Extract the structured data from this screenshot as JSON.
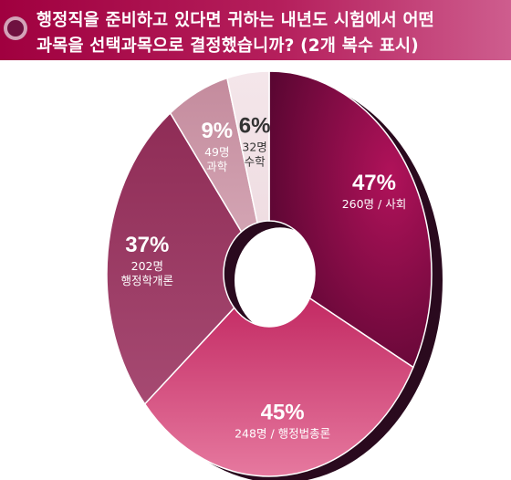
{
  "header": {
    "title_line1": "행정직을 준비하고 있다면 귀하는 내년도 시험에서 어떤",
    "title_line2": "과목을 선택과목으로 결정했습니까? (2개 복수 표시)"
  },
  "colors": {
    "header_start": "#a0003f",
    "header_end": "#ce5d8e",
    "shadow": "#2a0a1e"
  },
  "chart_data": {
    "type": "pie",
    "style": "donut",
    "categories": [
      "사회",
      "행정법총론",
      "행정학개론",
      "과학",
      "수학"
    ],
    "values": [
      47,
      45,
      37,
      9,
      6
    ],
    "counts": [
      260,
      248,
      202,
      49,
      32
    ],
    "percent_labels": [
      "47%",
      "45%",
      "37%",
      "9%",
      "6%"
    ],
    "detail_labels": [
      [
        "260명 / 사회"
      ],
      [
        "248명 / 행정법총론"
      ],
      [
        "202명",
        "행정학개론"
      ],
      [
        "49명",
        "과학"
      ],
      [
        "32명",
        "수학"
      ]
    ],
    "colors": [
      "#8c0a3d",
      "#c93a73",
      "#993c63",
      "#c98c9f",
      "#f3e3e7"
    ],
    "label_colors": [
      "#ffffff",
      "#ffffff",
      "#ffffff",
      "#ffffff",
      "#333333"
    ]
  }
}
